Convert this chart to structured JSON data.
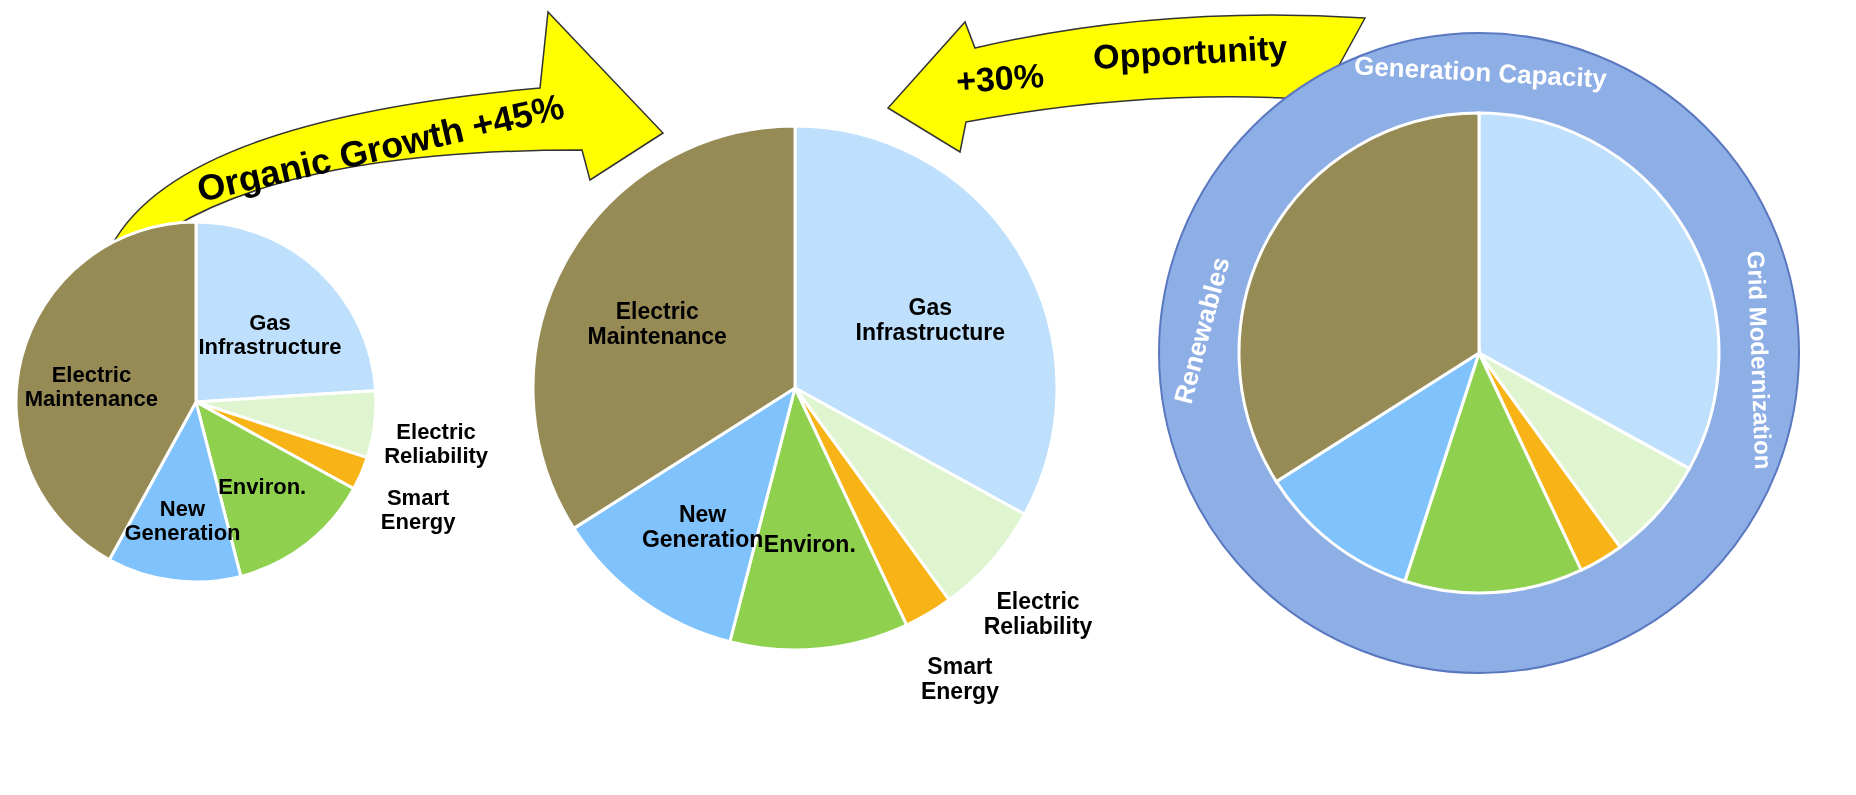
{
  "chart_data": [
    {
      "type": "pie",
      "categories": [
        "Gas Infrastructure",
        "Electric Reliability",
        "Smart Energy",
        "Environ.",
        "New Generation",
        "Electric Maintenance"
      ],
      "values": [
        24,
        6,
        3,
        13,
        12,
        42
      ],
      "colors": [
        "#bfe0fd",
        "#def5d0",
        "#f8b416",
        "#8fd14f",
        "#7fc2fc",
        "#968a55"
      ],
      "annotations": [
        "Organic Growth  +45%"
      ]
    },
    {
      "type": "pie",
      "categories": [
        "Gas Infrastructure",
        "Electric Reliability",
        "Smart Energy",
        "Environ.",
        "New Generation",
        "Electric Maintenance"
      ],
      "values": [
        33,
        7,
        3,
        11,
        12,
        34
      ],
      "colors": [
        "#bfe0fd",
        "#def5d0",
        "#f8b416",
        "#8fd14f",
        "#7fc2fc",
        "#968a55"
      ]
    },
    {
      "type": "pie",
      "categories": [
        null,
        null,
        null,
        null,
        null,
        null
      ],
      "values": [
        33,
        7,
        3,
        12,
        11,
        34
      ],
      "colors": [
        "#bfe0fd",
        "#def5d0",
        "#f8b416",
        "#8fd14f",
        "#7fc2fc",
        "#968a55"
      ],
      "annotations": [
        "+30%",
        "Opportunity",
        "Generation  Capacity",
        "Grid  Modernization",
        "Renewables"
      ]
    }
  ]
}
